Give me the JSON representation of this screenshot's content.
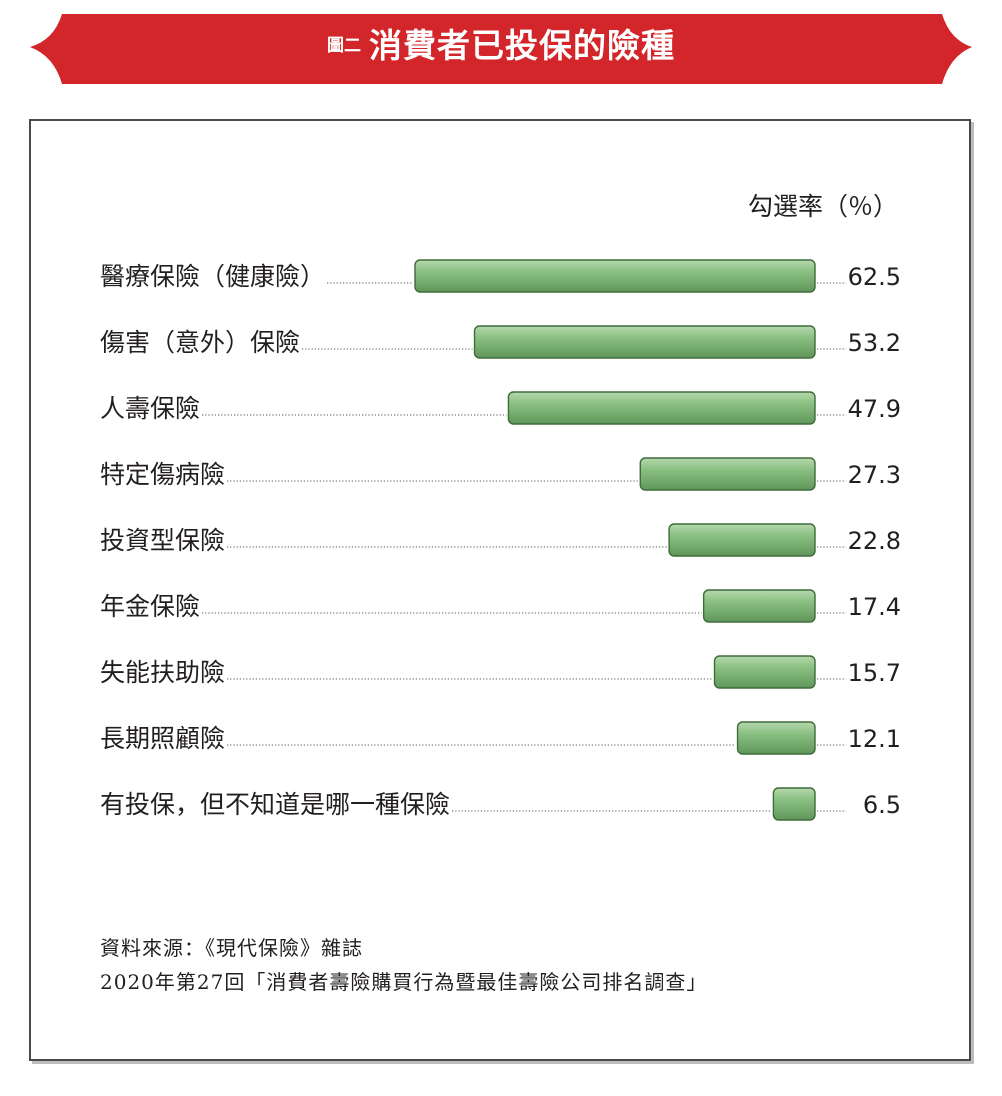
{
  "header": {
    "figure_label": "圖二",
    "title": "消費者已投保的險種"
  },
  "chart_data": {
    "type": "bar",
    "orientation": "horizontal",
    "title": "消費者已投保的險種",
    "unit_label": "勾選率（％）",
    "categories": [
      "醫療保險（健康險）",
      "傷害（意外）保險",
      "人壽保險",
      "特定傷病險",
      "投資型保險",
      "年金保險",
      "失能扶助險",
      "長期照顧險",
      "有投保，但不知道是哪一種保險"
    ],
    "values": [
      62.5,
      53.2,
      47.9,
      27.3,
      22.8,
      17.4,
      15.7,
      12.1,
      6.5
    ],
    "value_labels": [
      "62.5",
      "53.2",
      "47.9",
      "27.3",
      "22.8",
      "17.4",
      "15.7",
      "12.1",
      "6.5"
    ],
    "xlim": [
      0,
      62.5
    ],
    "bar_color": "#7fb27a",
    "grid": false,
    "legend": "none"
  },
  "source": {
    "line1": "資料來源：《現代保險》雜誌",
    "line2": "2020年第27回「消費者壽險購買行為暨最佳壽險公司排名調查」"
  },
  "colors": {
    "banner": "#d2262a",
    "bar_fill": "#7fb27a",
    "bar_border": "#3e6b3a"
  }
}
